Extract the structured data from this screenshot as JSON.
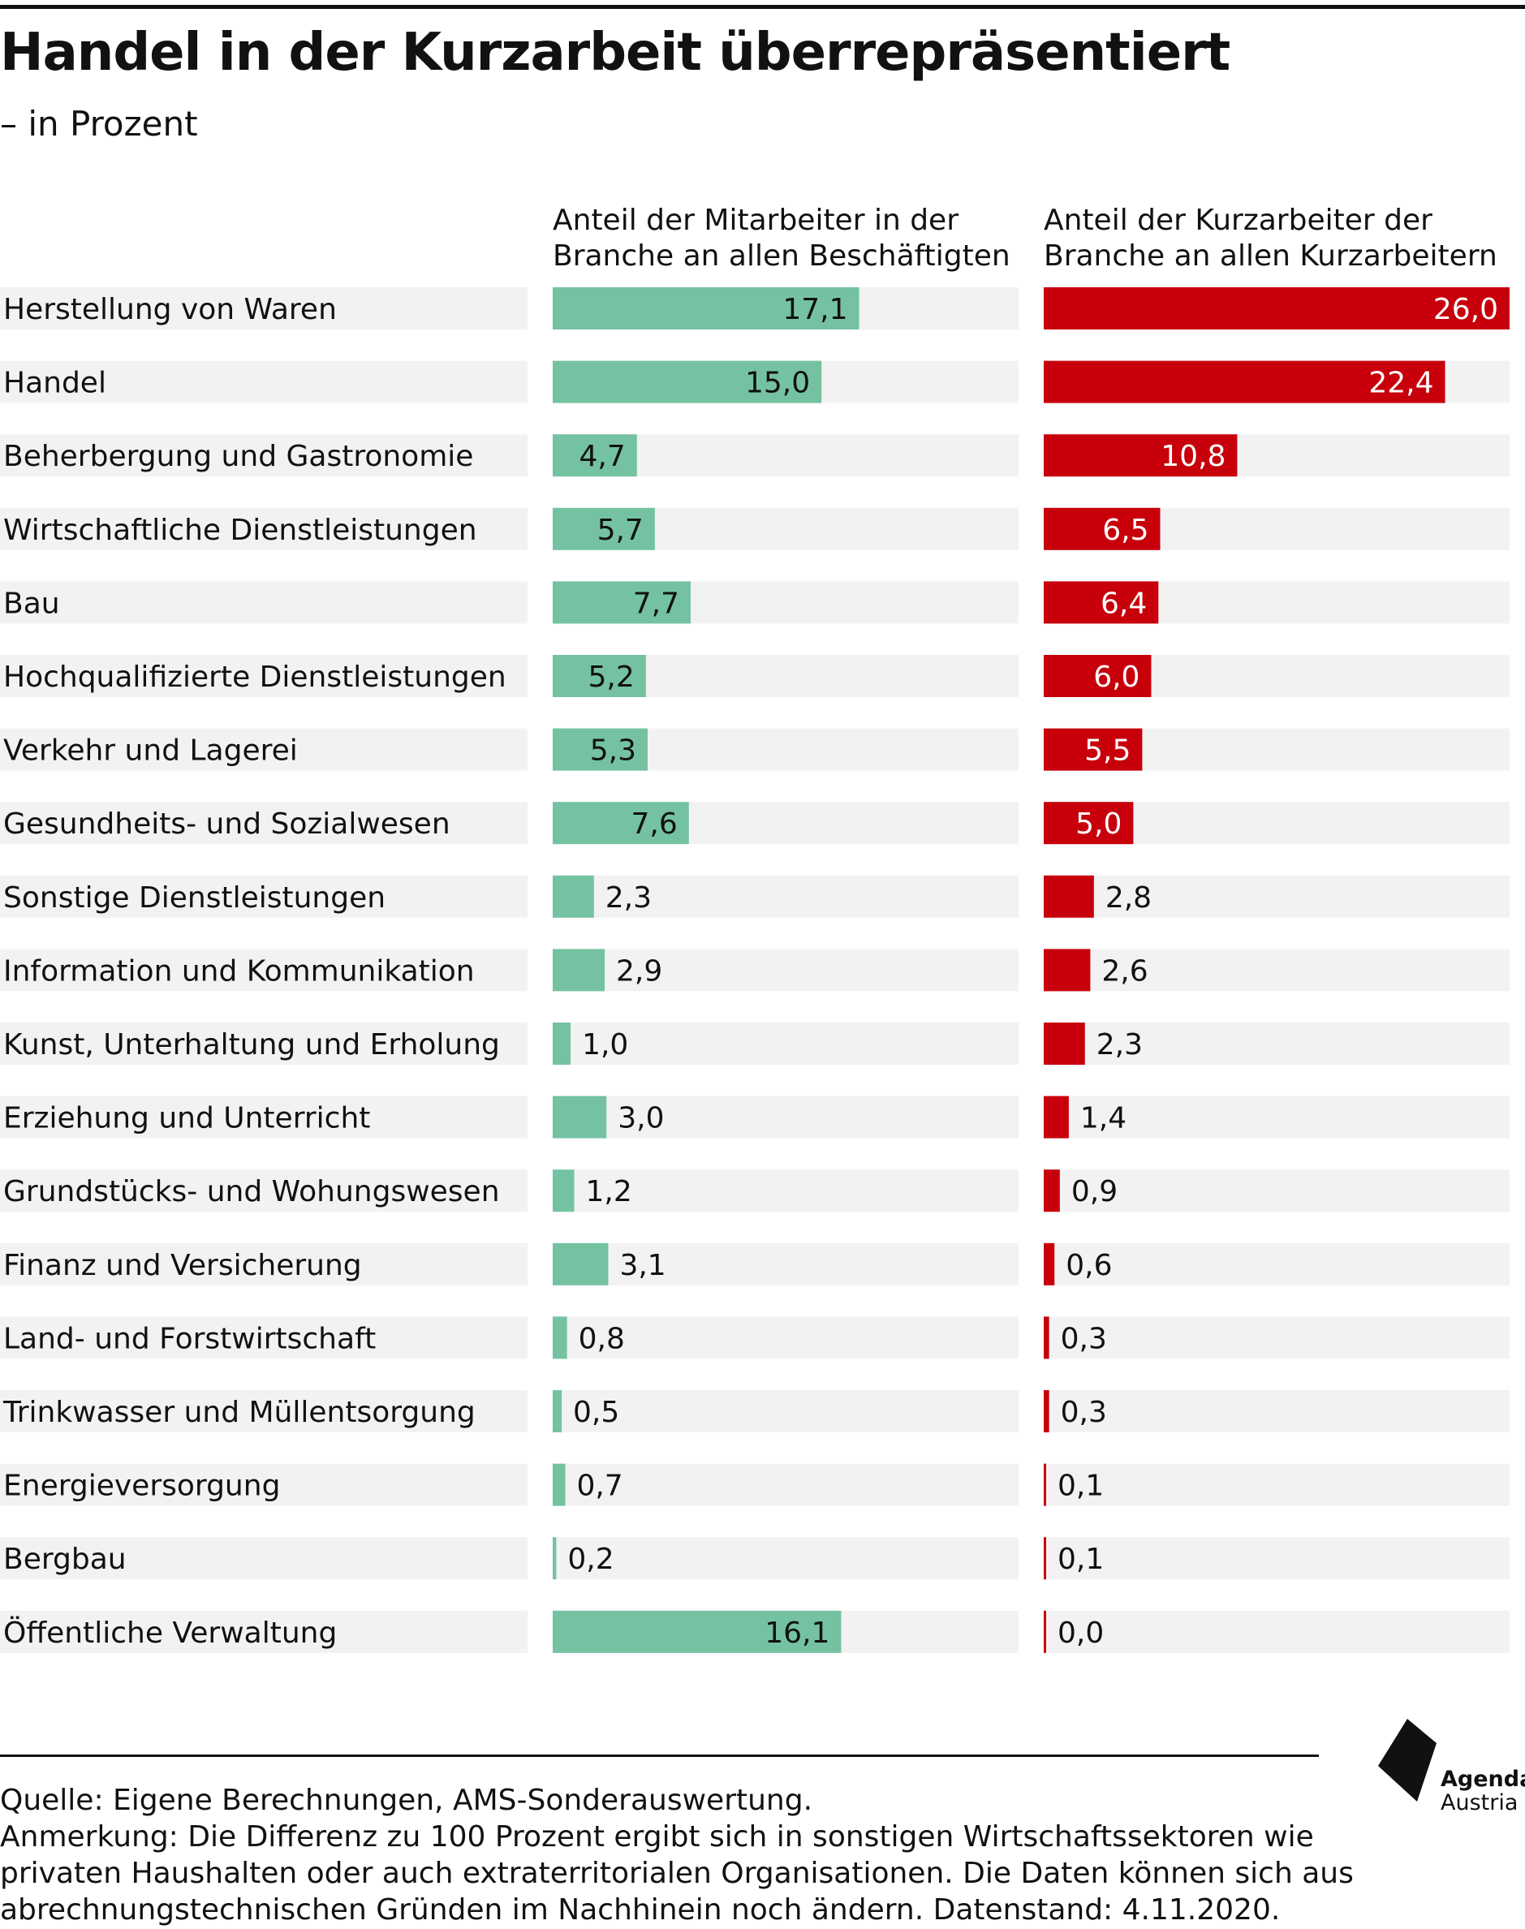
{
  "title": "Handel in der Kurzarbeit überrepräsentiert",
  "subtitle": "– in Prozent",
  "colors": {
    "employees": "#74c2a1",
    "shorttime": "#c7000b",
    "track": "#f2f2f2",
    "text": "#111111"
  },
  "footer": {
    "source": "Quelle: Eigene Berechnungen, AMS-Sonderauswertung.",
    "note_lines": [
      "Anmerkung: Die Differenz zu 100 Prozent ergibt sich in sonstigen Wirtschaftssektoren wie",
      "privaten Haushalten oder auch extraterritorialen Organisationen. Die Daten können sich aus",
      "abrechnungstechnischen Gründen im Nachhinein noch ändern. Datenstand: 4.11.2020."
    ]
  },
  "logo": {
    "icon": "agenda-austria-logo-icon",
    "line1": "Agenda",
    "line2": "Austria"
  },
  "chart_data": {
    "type": "bar",
    "orientation": "horizontal",
    "title": "Handel in der Kurzarbeit überrepräsentiert",
    "subtitle": "– in Prozent",
    "xlim": [
      0,
      26
    ],
    "categories": [
      "Herstellung von Waren",
      "Handel",
      "Beherbergung und Gastronomie",
      "Wirtschaftliche Dienstleistungen",
      "Bau",
      "Hochqualifizierte Dienstleistungen",
      "Verkehr und Lagerei",
      "Gesundheits- und Sozialwesen",
      "Sonstige Dienstleistungen",
      "Information und Kommunikation",
      "Kunst, Unterhaltung und Erholung",
      "Erziehung und Unterricht",
      "Grundstücks- und Wohungswesen",
      "Finanz und Versicherung",
      "Land- und Forstwirtschaft",
      "Trinkwasser und Müllentsorgung",
      "Energieversorgung",
      "Bergbau",
      "Öffentliche Verwaltung"
    ],
    "series": [
      {
        "name": "Anteil der Mitarbeiter in der Branche an allen Beschäftigten",
        "name_lines": [
          "Anteil der Mitarbeiter in der",
          "Branche an allen Beschäftigten"
        ],
        "values": [
          17.1,
          15.0,
          4.7,
          5.7,
          7.7,
          5.2,
          5.3,
          7.6,
          2.3,
          2.9,
          1.0,
          3.0,
          1.2,
          3.1,
          0.8,
          0.5,
          0.7,
          0.2,
          16.1
        ],
        "labels": [
          "17,1",
          "15,0",
          "4,7",
          "5,7",
          "7,7",
          "5,2",
          "5,3",
          "7,6",
          "2,3",
          "2,9",
          "1,0",
          "3,0",
          "1,2",
          "3,1",
          "0,8",
          "0,5",
          "0,7",
          "0,2",
          "16,1"
        ]
      },
      {
        "name": "Anteil der Kurzarbeiter der Branche an allen Kurzarbeitern",
        "name_lines": [
          "Anteil der Kurzarbeiter der",
          "Branche an allen Kurzarbeitern"
        ],
        "values": [
          26.0,
          22.4,
          10.8,
          6.5,
          6.4,
          6.0,
          5.5,
          5.0,
          2.8,
          2.6,
          2.3,
          1.4,
          0.9,
          0.6,
          0.3,
          0.3,
          0.1,
          0.1,
          0.0
        ],
        "labels": [
          "26,0",
          "22,4",
          "10,8",
          "6,5",
          "6,4",
          "6,0",
          "5,5",
          "5,0",
          "2,8",
          "2,6",
          "2,3",
          "1,4",
          "0,9",
          "0,6",
          "0,3",
          "0,3",
          "0,1",
          "0,1",
          "0,0"
        ]
      }
    ],
    "grid": false,
    "legend": "column-headers"
  }
}
